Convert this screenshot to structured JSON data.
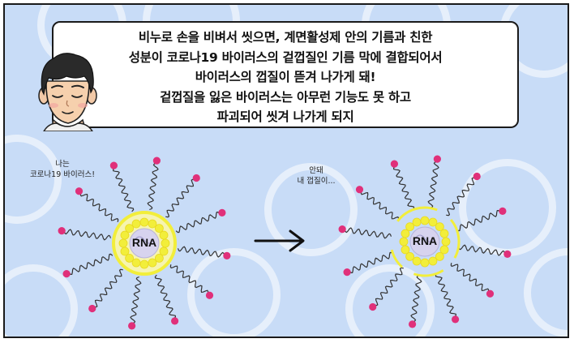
{
  "speech_bubble": {
    "lines": [
      "비누로 손을 비벼서 씻으면, 계면활성제 안의 기름과 친한",
      "성분이 코로나19 바이러스의 겉껍질인 기름 막에 결합되어서",
      "바이러스의 껍질이 뜯겨 나가게 돼!",
      "겉껍질을 잃은 바이러스는 아무런 기능도 못 하고",
      "파괴되어 씻겨 나가게 되지"
    ]
  },
  "left_virus": {
    "speech": [
      "나는",
      "코로나19 바이러스!"
    ],
    "core_label": "RNA"
  },
  "right_virus": {
    "speech": [
      "안돼",
      "내 껍질이..."
    ],
    "core_label": "RNA"
  },
  "colors": {
    "background": "#c8dcf7",
    "envelope": "#f2ee3a",
    "spike_tip": "#e0307a",
    "core": "#d7d3ee"
  }
}
